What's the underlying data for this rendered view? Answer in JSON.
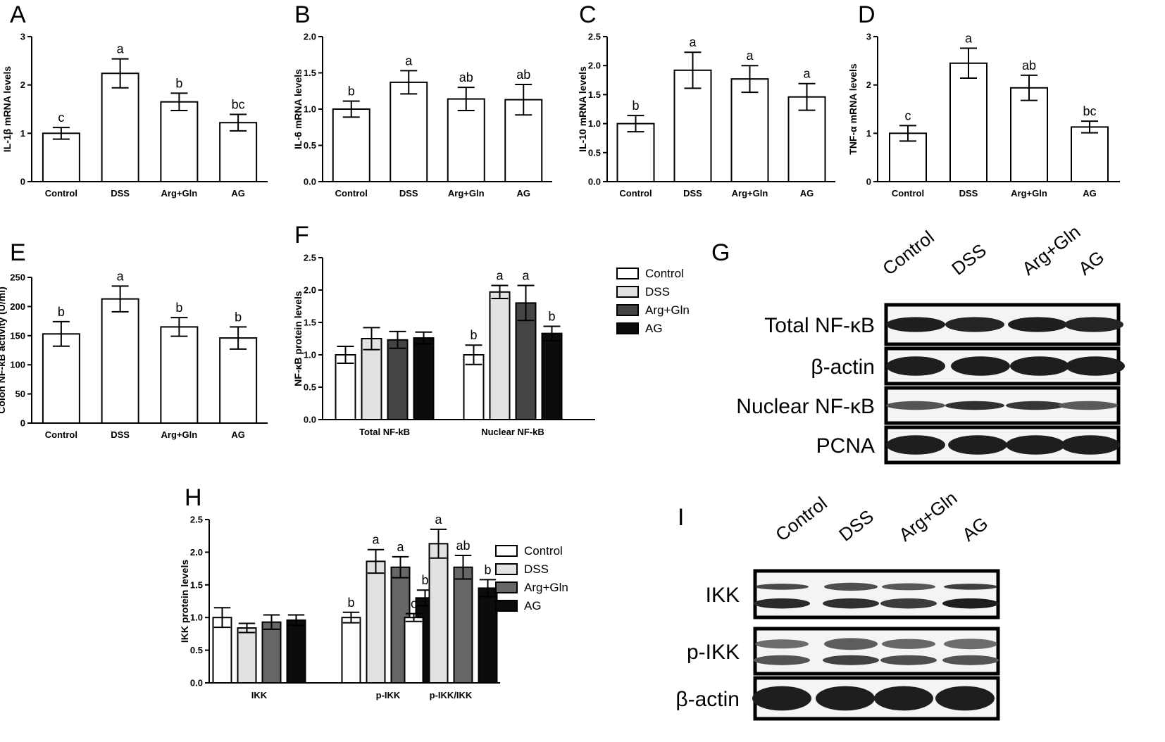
{
  "colors": {
    "Control": "#ffffff",
    "DSS": "#e2e2e2",
    "Arg+Gln": "#444444",
    "AG": "#0c0c0c",
    "Arg+Gln (H)": "#666666"
  },
  "blots": [
    {
      "letter": "G",
      "lanes": [
        "Control",
        "DSS",
        "Arg+Gln",
        "AG"
      ],
      "rows": [
        {
          "label": "Total NF-κB"
        },
        {
          "label": "β-actin"
        },
        {
          "label": "Nuclear NF-κB"
        },
        {
          "label": "PCNA"
        }
      ]
    },
    {
      "letter": "I",
      "lanes": [
        "Control",
        "DSS",
        "Arg+Gln",
        "AG"
      ],
      "rows": [
        {
          "label": "IKK"
        },
        {
          "label": "p-IKK"
        },
        {
          "label": "β-actin"
        }
      ]
    }
  ],
  "chart_data": [
    {
      "letter": "A",
      "type": "bar",
      "ylabel": "IL-1β mRNA levels",
      "ylim": [
        0,
        3
      ],
      "yticks": [
        "0",
        "1",
        "2",
        "3"
      ],
      "categories": [
        "Control",
        "DSS",
        "Arg+Gln",
        "AG"
      ],
      "values": [
        1.0,
        2.24,
        1.65,
        1.22
      ],
      "errors": [
        0.12,
        0.3,
        0.18,
        0.17
      ],
      "labels": [
        "c",
        "a",
        "b",
        "bc"
      ]
    },
    {
      "letter": "B",
      "type": "bar",
      "ylabel": "IL-6 mRNA levels",
      "ylim": [
        0,
        2
      ],
      "yticks": [
        "0.0",
        "0.5",
        "1.0",
        "1.5",
        "2.0"
      ],
      "categories": [
        "Control",
        "DSS",
        "Arg+Gln",
        "AG"
      ],
      "values": [
        1.0,
        1.37,
        1.14,
        1.13
      ],
      "errors": [
        0.11,
        0.16,
        0.16,
        0.21
      ],
      "labels": [
        "b",
        "a",
        "ab",
        "ab"
      ]
    },
    {
      "letter": "C",
      "type": "bar",
      "ylabel": "IL-10 mRNA levels",
      "ylim": [
        0,
        2.5
      ],
      "yticks": [
        "0.0",
        "0.5",
        "1.0",
        "1.5",
        "2.0",
        "2.5"
      ],
      "categories": [
        "Control",
        "DSS",
        "Arg+Gln",
        "AG"
      ],
      "values": [
        1.0,
        1.92,
        1.77,
        1.46
      ],
      "errors": [
        0.14,
        0.31,
        0.23,
        0.23
      ],
      "labels": [
        "b",
        "a",
        "a",
        "a"
      ]
    },
    {
      "letter": "D",
      "type": "bar",
      "ylabel": "TNF-α mRNA levels",
      "ylim": [
        0,
        3
      ],
      "yticks": [
        "0",
        "1",
        "2",
        "3"
      ],
      "categories": [
        "Control",
        "DSS",
        "Arg+Gln",
        "AG"
      ],
      "values": [
        1.0,
        2.45,
        1.94,
        1.13
      ],
      "errors": [
        0.16,
        0.31,
        0.26,
        0.12
      ],
      "labels": [
        "c",
        "a",
        "ab",
        "bc"
      ]
    },
    {
      "letter": "E",
      "type": "bar",
      "ylabel": "Colon NF-κB activity (U/ml)",
      "ylim": [
        0,
        250
      ],
      "yticks": [
        "0",
        "50",
        "100",
        "150",
        "200",
        "250"
      ],
      "categories": [
        "Control",
        "DSS",
        "Arg+Gln",
        "AG"
      ],
      "values": [
        153,
        213,
        165,
        146
      ],
      "errors": [
        21,
        22,
        16,
        19
      ],
      "labels": [
        "b",
        "a",
        "b",
        "b"
      ]
    },
    {
      "letter": "F",
      "type": "bar",
      "ylabel": "NF-κB protein levels",
      "ylim": [
        0,
        2.5
      ],
      "yticks": [
        "0.0",
        "0.5",
        "1.0",
        "1.5",
        "2.0",
        "2.5"
      ],
      "categories": [
        "Total NF-kB",
        "Nuclear NF-kB"
      ],
      "series": [
        {
          "name": "Control",
          "values": [
            1.0,
            1.0
          ],
          "errors": [
            0.13,
            0.15
          ],
          "labels": [
            "",
            "b"
          ]
        },
        {
          "name": "DSS",
          "values": [
            1.25,
            1.97
          ],
          "errors": [
            0.17,
            0.1
          ],
          "labels": [
            "",
            "a"
          ]
        },
        {
          "name": "Arg+Gln",
          "values": [
            1.23,
            1.8
          ],
          "errors": [
            0.13,
            0.27
          ],
          "labels": [
            "",
            "a"
          ]
        },
        {
          "name": "AG",
          "values": [
            1.26,
            1.33
          ],
          "errors": [
            0.09,
            0.11
          ],
          "labels": [
            "",
            "b"
          ]
        }
      ],
      "legend": "right"
    },
    {
      "letter": "H",
      "type": "bar",
      "ylabel": "IKK protein levels",
      "ylim": [
        0,
        2.5
      ],
      "yticks": [
        "0.0",
        "0.5",
        "1.0",
        "1.5",
        "2.0",
        "2.5"
      ],
      "categories": [
        "IKK",
        "p-IKK",
        "p-IKK/IKK"
      ],
      "series": [
        {
          "name": "Control",
          "values": [
            1.0,
            1.0,
            1.0
          ],
          "errors": [
            0.15,
            0.08,
            0.06
          ],
          "labels": [
            "",
            "b",
            "c"
          ]
        },
        {
          "name": "DSS",
          "values": [
            0.84,
            1.86,
            2.13
          ],
          "errors": [
            0.07,
            0.18,
            0.22
          ],
          "labels": [
            "",
            "a",
            "a"
          ]
        },
        {
          "name": "Arg+Gln",
          "values": [
            0.93,
            1.77,
            1.77
          ],
          "errors": [
            0.11,
            0.16,
            0.18
          ],
          "labels": [
            "",
            "a",
            "ab"
          ]
        },
        {
          "name": "AG",
          "values": [
            0.96,
            1.3,
            1.45
          ],
          "errors": [
            0.08,
            0.12,
            0.13
          ],
          "labels": [
            "",
            "b",
            "b"
          ]
        }
      ],
      "legend": "right"
    }
  ]
}
